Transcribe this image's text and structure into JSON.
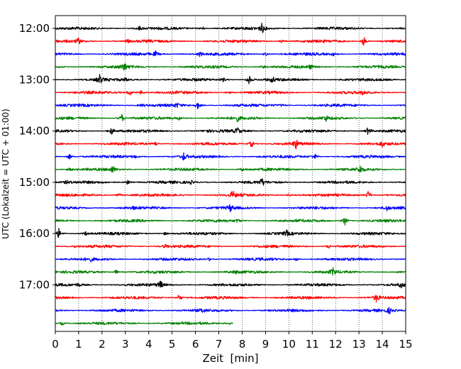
{
  "chart_data": {
    "type": "line",
    "title": "",
    "xlabel": "Zeit  [min]",
    "ylabel": "UTC (Lokalzeit = UTC + 01:00)",
    "xlim": [
      0,
      15
    ],
    "x_ticks": [
      "0",
      "1",
      "2",
      "3",
      "4",
      "5",
      "6",
      "7",
      "8",
      "9",
      "10",
      "11",
      "12",
      "13",
      "14",
      "15"
    ],
    "y_tick_labels": [
      "12:00",
      "13:00",
      "14:00",
      "15:00",
      "16:00",
      "17:00"
    ],
    "grid": "vertical dotted",
    "legend": "none",
    "row_interval_min": 15,
    "line_colors": [
      "#000000",
      "#ff0000",
      "#0000ff",
      "#008000"
    ],
    "traces": [
      {
        "start": "12:00",
        "color": "#000000",
        "end_min": 15,
        "events": [
          [
            8.85,
            1.0
          ],
          [
            6.3,
            0.4
          ],
          [
            3.6,
            0.4
          ]
        ]
      },
      {
        "start": "12:15",
        "color": "#ff0000",
        "end_min": 15,
        "events": [
          [
            1.0,
            0.6
          ],
          [
            13.2,
            1.0
          ],
          [
            3.1,
            0.3
          ],
          [
            9.7,
            0.3
          ]
        ]
      },
      {
        "start": "12:30",
        "color": "#0000ff",
        "end_min": 15,
        "events": [
          [
            4.3,
            0.5
          ],
          [
            6.2,
            0.5
          ],
          [
            9.0,
            0.4
          ],
          [
            11.9,
            0.3
          ]
        ]
      },
      {
        "start": "12:45",
        "color": "#008000",
        "end_min": 15,
        "events": [
          [
            2.95,
            0.9
          ],
          [
            8.9,
            0.3
          ],
          [
            10.9,
            0.4
          ]
        ]
      },
      {
        "start": "13:00",
        "color": "#000000",
        "end_min": 15,
        "events": [
          [
            1.9,
            0.9
          ],
          [
            8.3,
            0.9
          ],
          [
            3.0,
            0.3
          ],
          [
            7.2,
            0.4
          ],
          [
            9.3,
            0.5
          ]
        ]
      },
      {
        "start": "13:15",
        "color": "#ff0000",
        "end_min": 15,
        "events": [
          [
            3.2,
            0.6
          ],
          [
            3.7,
            0.5
          ],
          [
            13.2,
            0.5
          ],
          [
            7.4,
            0.3
          ]
        ]
      },
      {
        "start": "13:30",
        "color": "#0000ff",
        "end_min": 15,
        "events": [
          [
            6.1,
            0.8
          ],
          [
            5.2,
            0.4
          ],
          [
            3.7,
            0.3
          ],
          [
            9.7,
            0.3
          ]
        ]
      },
      {
        "start": "13:45",
        "color": "#008000",
        "end_min": 15,
        "events": [
          [
            2.85,
            0.8
          ],
          [
            7.8,
            0.5
          ],
          [
            11.6,
            0.5
          ],
          [
            5.3,
            0.3
          ]
        ]
      },
      {
        "start": "14:00",
        "color": "#000000",
        "end_min": 15,
        "events": [
          [
            2.4,
            0.8
          ],
          [
            7.8,
            0.7
          ],
          [
            13.4,
            0.9
          ],
          [
            6.5,
            0.3
          ]
        ]
      },
      {
        "start": "14:15",
        "color": "#ff0000",
        "end_min": 15,
        "events": [
          [
            8.4,
            0.8
          ],
          [
            10.3,
            0.9
          ],
          [
            4.3,
            0.4
          ],
          [
            14.0,
            0.5
          ]
        ]
      },
      {
        "start": "14:30",
        "color": "#0000ff",
        "end_min": 15,
        "events": [
          [
            5.5,
            0.8
          ],
          [
            0.6,
            0.6
          ],
          [
            11.1,
            0.6
          ],
          [
            3.4,
            0.3
          ]
        ]
      },
      {
        "start": "14:45",
        "color": "#008000",
        "end_min": 15,
        "events": [
          [
            2.45,
            0.7
          ],
          [
            13.05,
            0.8
          ],
          [
            8.0,
            0.3
          ],
          [
            0.6,
            0.3
          ]
        ]
      },
      {
        "start": "15:00",
        "color": "#000000",
        "end_min": 15,
        "events": [
          [
            8.85,
            0.8
          ],
          [
            3.1,
            0.5
          ],
          [
            0.5,
            0.3
          ],
          [
            5.8,
            0.3
          ]
        ]
      },
      {
        "start": "15:15",
        "color": "#ff0000",
        "end_min": 15,
        "events": [
          [
            7.6,
            0.9
          ],
          [
            13.4,
            0.9
          ],
          [
            2.7,
            0.4
          ],
          [
            10.0,
            0.3
          ]
        ]
      },
      {
        "start": "15:30",
        "color": "#0000ff",
        "end_min": 15,
        "events": [
          [
            7.5,
            0.7
          ],
          [
            14.2,
            0.5
          ],
          [
            3.3,
            0.3
          ]
        ]
      },
      {
        "start": "15:45",
        "color": "#008000",
        "end_min": 15,
        "events": [
          [
            12.4,
            0.9
          ],
          [
            7.8,
            0.3
          ]
        ]
      },
      {
        "start": "16:00",
        "color": "#000000",
        "end_min": 15,
        "events": [
          [
            0.15,
            1.0
          ],
          [
            9.9,
            0.5
          ],
          [
            4.7,
            0.3
          ],
          [
            1.3,
            0.4
          ]
        ]
      },
      {
        "start": "16:15",
        "color": "#ff0000",
        "end_min": 15,
        "events": [
          [
            4.7,
            0.4
          ],
          [
            11.7,
            0.4
          ],
          [
            0.8,
            0.3
          ]
        ]
      },
      {
        "start": "16:30",
        "color": "#0000ff",
        "end_min": 15,
        "events": [
          [
            1.5,
            0.3
          ],
          [
            6.6,
            0.3
          ],
          [
            10.3,
            0.3
          ]
        ]
      },
      {
        "start": "16:45",
        "color": "#008000",
        "end_min": 15,
        "events": [
          [
            11.9,
            0.8
          ],
          [
            2.6,
            0.4
          ],
          [
            7.7,
            0.3
          ]
        ]
      },
      {
        "start": "17:00",
        "color": "#000000",
        "end_min": 15,
        "events": [
          [
            4.5,
            0.8
          ],
          [
            14.8,
            0.5
          ],
          [
            1.0,
            0.3
          ]
        ]
      },
      {
        "start": "17:15",
        "color": "#ff0000",
        "end_min": 15,
        "events": [
          [
            5.3,
            0.7
          ],
          [
            13.75,
            0.9
          ]
        ]
      },
      {
        "start": "17:30",
        "color": "#0000ff",
        "end_min": 15,
        "events": [
          [
            14.3,
            0.5
          ],
          [
            6.3,
            0.3
          ]
        ]
      },
      {
        "start": "17:45",
        "color": "#008000",
        "end_min": 7.6,
        "events": [
          [
            0.3,
            0.4
          ],
          [
            7.5,
            0.3
          ]
        ]
      }
    ]
  }
}
